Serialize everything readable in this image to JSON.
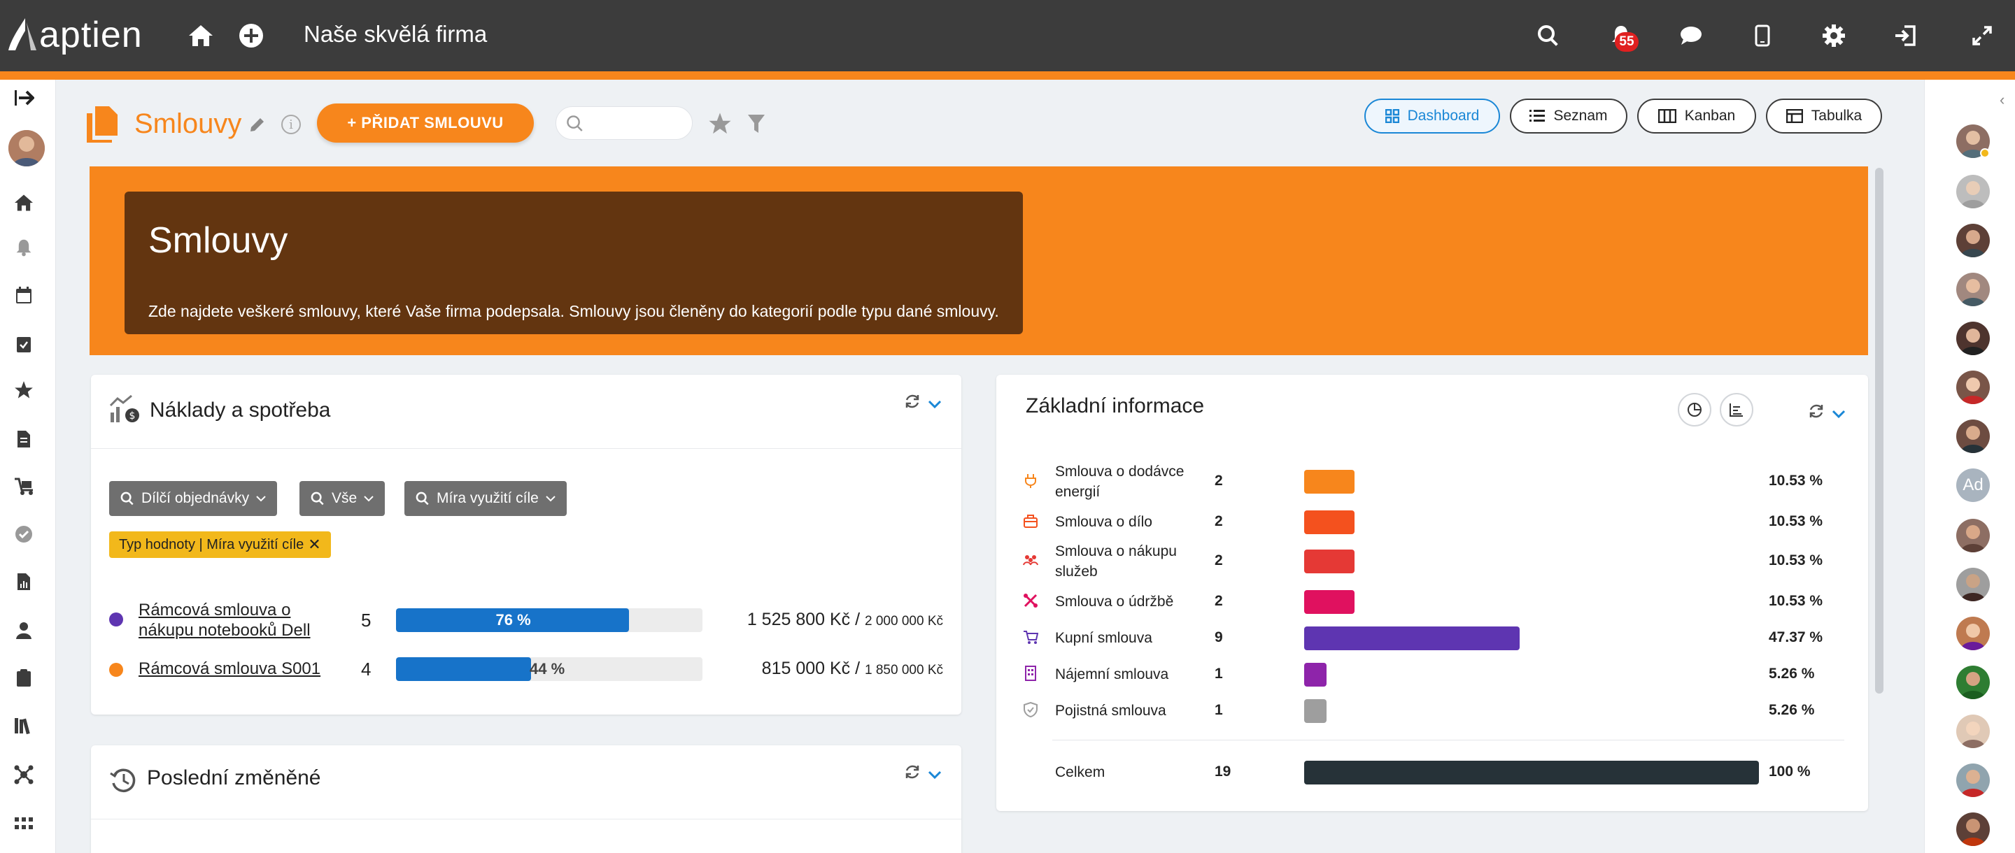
{
  "app": {
    "logo_text": "aptien",
    "company_name": "Naše skvělá firma",
    "notification_count": "55"
  },
  "page": {
    "title": "Smlouvy",
    "add_button_label": "+ PŘIDAT SMLOUVU",
    "search_placeholder": "",
    "views": [
      {
        "label": "Dashboard",
        "icon": "dashboard-icon",
        "active": true
      },
      {
        "label": "Seznam",
        "icon": "list-icon",
        "active": false
      },
      {
        "label": "Kanban",
        "icon": "kanban-icon",
        "active": false
      },
      {
        "label": "Tabulka",
        "icon": "table-icon",
        "active": false
      }
    ]
  },
  "banner": {
    "title": "Smlouvy",
    "text": "Zde najdete veškeré smlouvy, které Vaše firma podepsala. Smlouvy jsou členěny do kategorií podle typu dané smlouvy."
  },
  "costs_widget": {
    "title": "Náklady a spotřeba",
    "filters": [
      "Dílčí objednávky",
      "Vše",
      "Míra využití cíle"
    ],
    "chip": "Typ hodnoty | Míra využití cíle",
    "rows": [
      {
        "name": "Rámcová smlouva o nákupu notebooků Dell",
        "count": "5",
        "progress": 76,
        "percent_label": "76 %",
        "amount": "1 525 800 Kč /",
        "target": "2 000 000 Kč",
        "dot_color": "#5e35b1"
      },
      {
        "name": "Rámcová smlouva S001",
        "count": "4",
        "progress": 44,
        "percent_label": "44 %",
        "amount": "815 000 Kč /",
        "target": "1 850 000 Kč",
        "dot_color": "#f7861c"
      }
    ]
  },
  "recent_widget": {
    "title": "Poslední změněné"
  },
  "basic_info": {
    "title": "Základní informace",
    "rows": [
      {
        "label": "Smlouva o dodávce energií",
        "count": 2,
        "percent": "10.53 %",
        "color": "#f7861c",
        "icon": "energy-icon"
      },
      {
        "label": "Smlouva o dílo",
        "count": 2,
        "percent": "10.53 %",
        "color": "#f4511e",
        "icon": "toolbox-icon"
      },
      {
        "label": "Smlouva o nákupu služeb",
        "count": 2,
        "percent": "10.53 %",
        "color": "#e53935",
        "icon": "people-icon"
      },
      {
        "label": "Smlouva o údržbě",
        "count": 2,
        "percent": "10.53 %",
        "color": "#e0115f",
        "icon": "tools-icon"
      },
      {
        "label": "Kupní smlouva",
        "count": 9,
        "percent": "47.37 %",
        "color": "#5e35b1",
        "icon": "cart-icon"
      },
      {
        "label": "Nájemní smlouva",
        "count": 1,
        "percent": "5.26 %",
        "color": "#8e24aa",
        "icon": "building-icon"
      },
      {
        "label": "Pojistná smlouva",
        "count": 1,
        "percent": "5.26 %",
        "color": "#9e9e9e",
        "icon": "shield-icon"
      }
    ],
    "total": {
      "label": "Celkem",
      "count": 19,
      "percent": "100 %",
      "color": "#263238"
    }
  }
}
